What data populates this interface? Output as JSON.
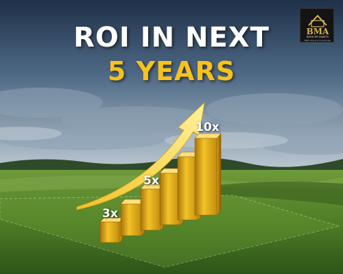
{
  "title": {
    "line1": "ROI IN NEXT",
    "line2": "5 YEARS"
  },
  "logo": {
    "mark": "BMA",
    "name": "BOOK MY ASSETS",
    "sub": "BMA Group of Companies"
  },
  "colors": {
    "accent": "#f6c21c",
    "gold_light": "#ffe580",
    "gold_dark": "#b8860b",
    "sky_top": "#263a55",
    "grass": "#5f8a2e"
  },
  "bar_labels": [
    "3x",
    "5x",
    "10x"
  ],
  "icons": [
    "house-logo-icon",
    "upward-arrow-icon"
  ]
}
